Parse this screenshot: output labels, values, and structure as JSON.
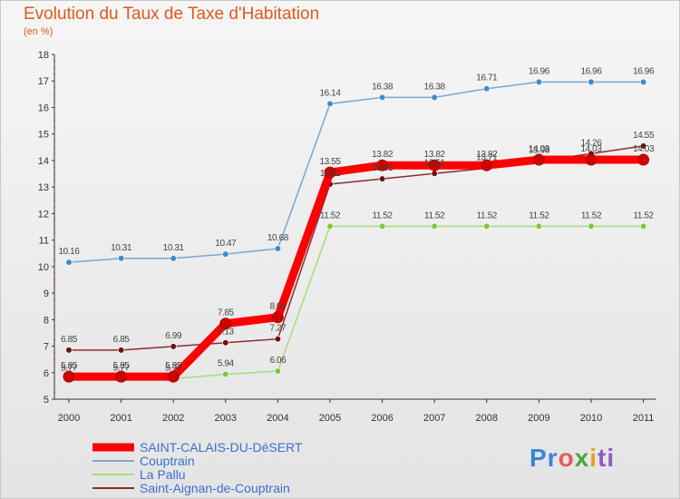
{
  "title": "Evolution du Taux de Taxe d'Habitation",
  "subtitle": "(en %)",
  "logo": {
    "part1": "Pr",
    "part2": "o",
    "part3": "x",
    "part4": "i",
    "part5": "ti"
  },
  "chart_data": {
    "type": "line",
    "title": "Evolution du Taux de Taxe d'Habitation",
    "ylabel": "(en %)",
    "xlabel": "",
    "ylim": [
      5,
      18
    ],
    "yticks": [
      5,
      6,
      7,
      8,
      9,
      10,
      11,
      12,
      13,
      14,
      15,
      16,
      17,
      18
    ],
    "grid": false,
    "categories": [
      "2000",
      "2001",
      "2002",
      "2003",
      "2004",
      "2005",
      "2006",
      "2007",
      "2008",
      "2009",
      "2010",
      "2011"
    ],
    "series": [
      {
        "name": "SAINT-CALAIS-DU-DéSERT",
        "color": "#ff0000",
        "marker": "#cc0000",
        "values": [
          5.85,
          5.85,
          5.85,
          7.85,
          8.09,
          13.55,
          13.82,
          13.82,
          13.82,
          14.03,
          14.03,
          14.03
        ],
        "labels": [
          "5.85",
          "5.85",
          "5.85",
          "7.85",
          "8.09",
          "13.55",
          "13.82",
          "13.82",
          "13.82",
          "14.03",
          "14.03",
          "14.03"
        ]
      },
      {
        "name": "Couptrain",
        "color": "#7ba7cf",
        "marker": "#3c8ad0",
        "values": [
          10.16,
          10.31,
          10.31,
          10.47,
          10.68,
          16.14,
          16.38,
          16.38,
          16.71,
          16.96,
          16.96,
          16.96
        ],
        "labels": [
          "10.16",
          "10.31",
          "10.31",
          "10.47",
          "10.68",
          "16.14",
          "16.38",
          "16.38",
          "16.71",
          "16.96",
          "16.96",
          "16.96"
        ]
      },
      {
        "name": "La Pallu",
        "color": "#a8dc7a",
        "marker": "#7cc83a",
        "values": [
          5.77,
          5.77,
          5.77,
          5.94,
          6.06,
          11.52,
          11.52,
          11.52,
          11.52,
          11.52,
          11.52,
          11.52
        ],
        "labels": [
          "5.77",
          "5.77",
          "5.77",
          "5.94",
          "6.06",
          "11.52",
          "11.52",
          "11.52",
          "11.52",
          "11.52",
          "11.52",
          "11.52"
        ]
      },
      {
        "name": "Saint-Aignan-de-Couptrain",
        "color": "#8a2e2e",
        "marker": "#6e1010",
        "values": [
          6.85,
          6.85,
          6.99,
          7.13,
          7.27,
          13.11,
          13.31,
          13.51,
          13.71,
          13.98,
          14.26,
          14.55
        ],
        "labels": [
          "6.85",
          "6.85",
          "6.99",
          "7.13",
          "7.27",
          "13.11",
          "13.31",
          "13.51",
          "13.71",
          "13.98",
          "14.26",
          "14.55"
        ]
      }
    ]
  }
}
